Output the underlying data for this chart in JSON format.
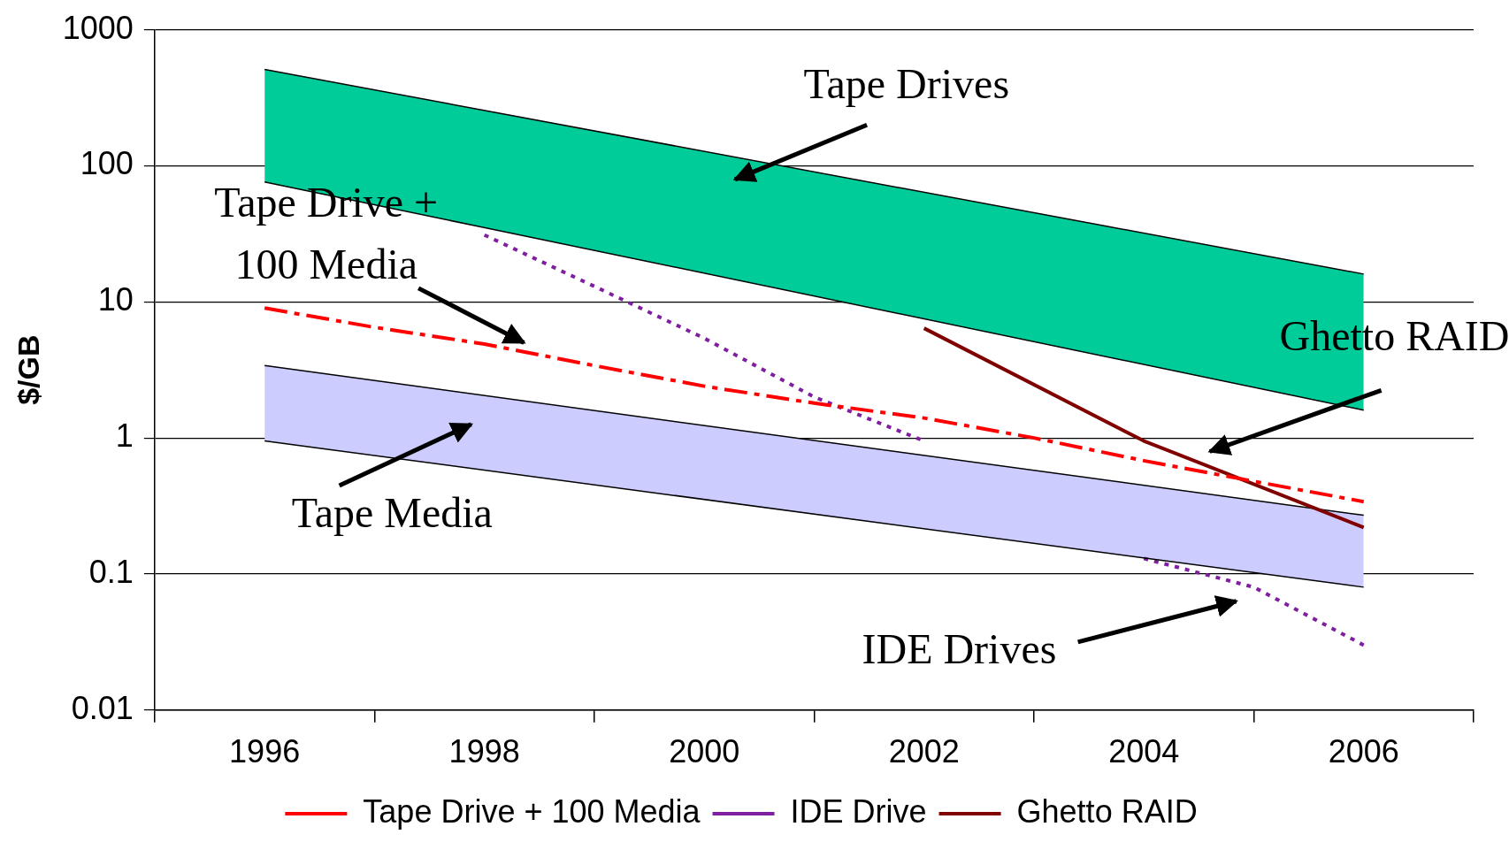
{
  "chart_data": {
    "type": "line",
    "ylabel": "$/GB",
    "log": "y",
    "grid": "y",
    "legend": "bottom",
    "xlim": [
      1995,
      2007
    ],
    "xticks": [
      {
        "value": 1995,
        "label": null
      },
      {
        "value": 1996,
        "label": "1996"
      },
      {
        "value": 1997,
        "label": null
      },
      {
        "value": 1998,
        "label": "1998"
      },
      {
        "value": 1999,
        "label": null
      },
      {
        "value": 2000,
        "label": "2000"
      },
      {
        "value": 2001,
        "label": null
      },
      {
        "value": 2002,
        "label": "2002"
      },
      {
        "value": 2003,
        "label": null
      },
      {
        "value": 2004,
        "label": "2004"
      },
      {
        "value": 2005,
        "label": null
      },
      {
        "value": 2006,
        "label": "2006"
      },
      {
        "value": 2007,
        "label": null
      }
    ],
    "ylim": [
      0.01,
      1000
    ],
    "yticks": [
      0.01,
      0.1,
      1,
      10,
      100,
      1000
    ],
    "series": [
      {
        "type": "line",
        "color": "#000000",
        "x": [
          1996,
          2006
        ],
        "values": [
          76,
          1.6
        ]
      },
      {
        "type": "area",
        "color": "#00cc99",
        "x": [
          1996,
          2006
        ],
        "values": [
          510,
          16
        ]
      },
      {
        "type": "line",
        "color": "#000000",
        "x": [
          1996,
          2006
        ],
        "values": [
          0.95,
          0.08
        ]
      },
      {
        "type": "area",
        "color": "#ccccff",
        "x": [
          1996,
          2006
        ],
        "values": [
          3.4,
          0.27
        ]
      },
      {
        "name": "Tape Drive + 100 Media",
        "color": "#ff0000",
        "line_style": "dashed",
        "x": [
          1996,
          1997,
          1998,
          1999,
          2000,
          2001,
          2002,
          2003,
          2004,
          2005,
          2006
        ],
        "values": [
          9,
          6.5,
          4.9,
          3.4,
          2.4,
          1.8,
          1.4,
          1,
          0.68,
          0.48,
          0.34
        ]
      },
      {
        "name": "IDE Drive",
        "color": "#7f1f9f",
        "line_style": "dotted",
        "x": [
          1998,
          1999,
          2000,
          2001,
          2002,
          2003,
          2004,
          2005,
          2006
        ],
        "values": [
          31,
          13,
          5.4,
          2,
          0.95,
          null,
          0.13,
          0.08,
          0.03
        ]
      },
      {
        "name": "Ghetto RAID",
        "color": "#800000",
        "line_style": "solid",
        "x": [
          2002,
          2004,
          2006
        ],
        "values": [
          6.4,
          0.95,
          0.22
        ]
      }
    ],
    "annotations": [
      "Tape Drives",
      "Tape Drive +\n100 Media",
      "Tape Media",
      "Ghetto RAID",
      "IDE Drives"
    ]
  }
}
